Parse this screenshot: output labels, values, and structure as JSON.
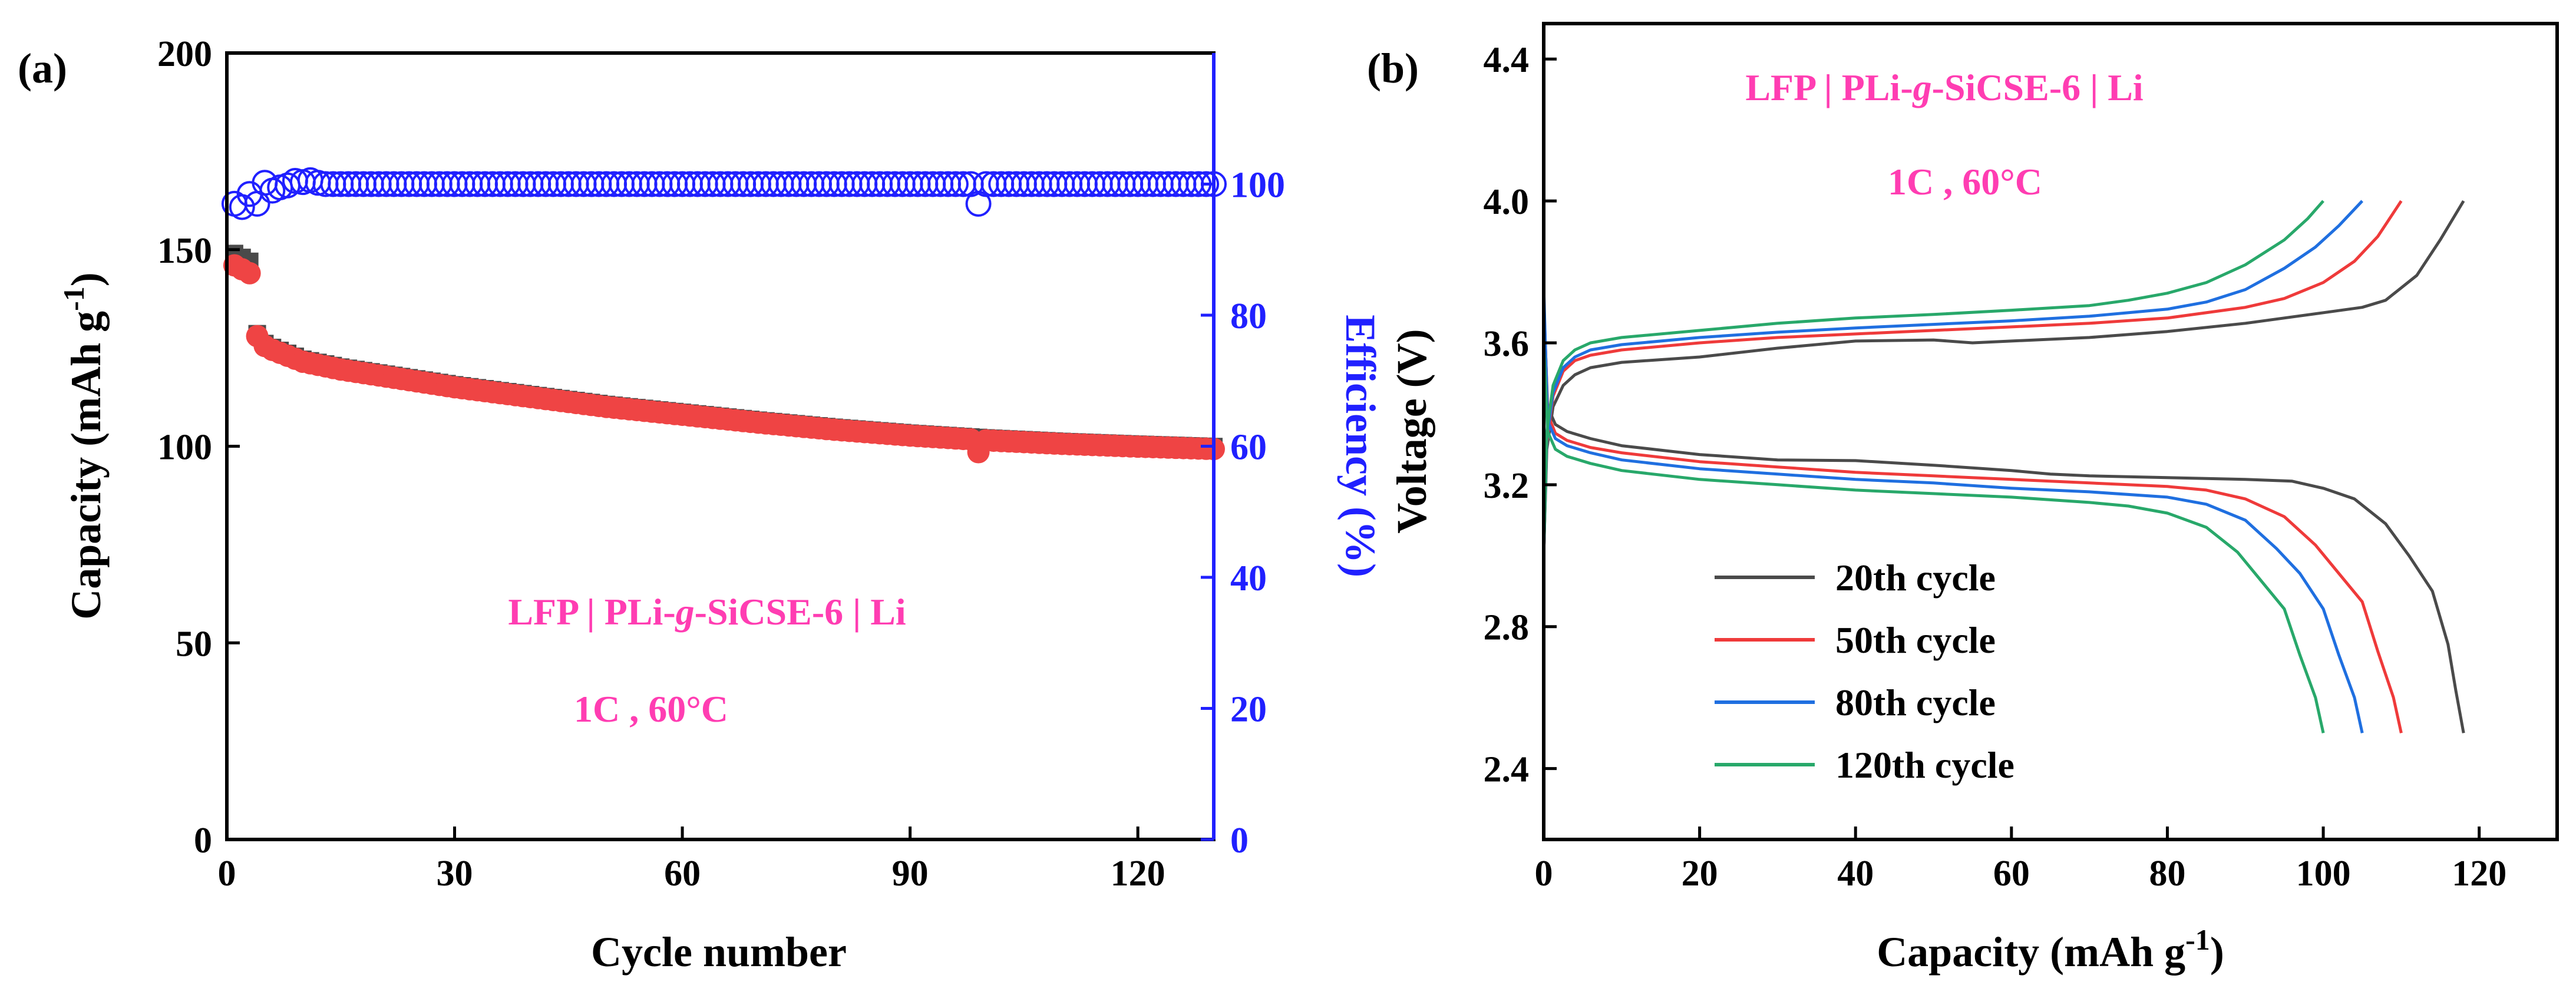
{
  "chart_data": [
    {
      "panel_label": "(a)",
      "type": "scatter",
      "xlabel": "Cycle number",
      "ylabel_main": "Capacity (mAh g",
      "ylabel_sup": "-1",
      "ylabel_close": ")",
      "y2label": "Efficiency (%)",
      "xlim": [
        0,
        130
      ],
      "ylim": [
        0,
        200
      ],
      "y2lim": [
        0,
        120
      ],
      "xticks": [
        0,
        30,
        60,
        90,
        120
      ],
      "yticks": [
        0,
        50,
        100,
        150,
        200
      ],
      "y2ticks": [
        0,
        20,
        40,
        60,
        80,
        100
      ],
      "colors": {
        "charge": "#4a4a4a",
        "discharge": "#ef4444",
        "efficiency": "#2020ff",
        "annotation": "#ff3db2",
        "axis": "#000000"
      },
      "annotation_parts": [
        "LFP | PLi-",
        "g",
        "-SiCSE-6 | Li"
      ],
      "annotation_condition": "1C , 60°C",
      "series": {
        "capacity_anchors": [
          [
            1,
            148
          ],
          [
            2,
            147
          ],
          [
            3,
            146
          ],
          [
            4,
            128
          ],
          [
            5,
            125.5
          ],
          [
            6,
            124.5
          ],
          [
            8,
            123
          ],
          [
            10,
            121.5
          ],
          [
            15,
            119.5
          ],
          [
            20,
            118
          ],
          [
            30,
            115
          ],
          [
            40,
            112.5
          ],
          [
            50,
            110
          ],
          [
            60,
            108
          ],
          [
            70,
            106
          ],
          [
            80,
            104.2
          ],
          [
            90,
            102.7
          ],
          [
            100,
            101.5
          ],
          [
            110,
            100.6
          ],
          [
            120,
            99.9
          ],
          [
            130,
            99.3
          ]
        ],
        "capacity_outlier": [
          99,
          98.5
        ],
        "efficiency_anchors": [
          [
            1,
            97
          ],
          [
            2,
            96.5
          ],
          [
            3,
            98.5
          ],
          [
            4,
            97
          ],
          [
            5,
            100.2
          ],
          [
            6,
            99
          ],
          [
            7,
            99.5
          ],
          [
            8,
            99.8
          ],
          [
            9,
            100.5
          ],
          [
            10,
            100.3
          ],
          [
            11,
            100.6
          ],
          [
            12,
            100.2
          ]
        ],
        "efficiency_steady": 100,
        "efficiency_outlier": [
          99,
          97
        ],
        "cycles": 130
      }
    },
    {
      "panel_label": "(b)",
      "type": "line",
      "xlabel_main": "Capacity (mAh g",
      "xlabel_sup": "-1",
      "xlabel_close": ")",
      "ylabel": "Voltage (V)",
      "xlim": [
        0,
        130
      ],
      "ylim": [
        2.2,
        4.5
      ],
      "xticks": [
        0,
        20,
        40,
        60,
        80,
        100,
        120
      ],
      "yticks": [
        2.4,
        2.8,
        3.2,
        3.6,
        4.0,
        4.4
      ],
      "ytick_labels": [
        "2.4",
        "2.8",
        "3.2",
        "3.6",
        "4.0",
        "4.4"
      ],
      "annotation_parts": [
        "LFP | PLi-",
        "g",
        "-SiCSE-6 | Li"
      ],
      "annotation_condition": "1C , 60°C",
      "annotation_color": "#ff3db2",
      "legend_position": "lower-left",
      "series": [
        {
          "name": "20th cycle",
          "color": "#4a4a4a",
          "charge": [
            [
              0,
              3.0
            ],
            [
              0.4,
              3.3
            ],
            [
              1.2,
              3.42
            ],
            [
              2.5,
              3.48
            ],
            [
              4,
              3.51
            ],
            [
              6,
              3.53
            ],
            [
              10,
              3.545
            ],
            [
              20,
              3.56
            ],
            [
              30,
              3.585
            ],
            [
              40,
              3.605
            ],
            [
              50,
              3.608
            ],
            [
              55,
              3.6
            ],
            [
              60,
              3.605
            ],
            [
              70,
              3.615
            ],
            [
              80,
              3.632
            ],
            [
              90,
              3.655
            ],
            [
              100,
              3.685
            ],
            [
              105,
              3.7
            ],
            [
              108,
              3.72
            ],
            [
              112,
              3.79
            ],
            [
              115,
              3.89
            ],
            [
              118,
              4.0
            ]
          ],
          "discharge": [
            [
              0,
              3.72
            ],
            [
              0.5,
              3.42
            ],
            [
              1.5,
              3.37
            ],
            [
              3,
              3.35
            ],
            [
              6,
              3.33
            ],
            [
              10,
              3.31
            ],
            [
              20,
              3.285
            ],
            [
              30,
              3.27
            ],
            [
              40,
              3.268
            ],
            [
              50,
              3.255
            ],
            [
              60,
              3.24
            ],
            [
              65,
              3.23
            ],
            [
              70,
              3.225
            ],
            [
              80,
              3.22
            ],
            [
              90,
              3.215
            ],
            [
              96,
              3.21
            ],
            [
              100,
              3.19
            ],
            [
              104,
              3.16
            ],
            [
              108,
              3.09
            ],
            [
              111,
              3.0
            ],
            [
              114,
              2.9
            ],
            [
              116,
              2.75
            ],
            [
              117,
              2.62
            ],
            [
              118,
              2.5
            ]
          ]
        },
        {
          "name": "50th cycle",
          "color": "#ef3a3a",
          "charge": [
            [
              0,
              3.0
            ],
            [
              0.4,
              3.32
            ],
            [
              1.2,
              3.45
            ],
            [
              2.5,
              3.52
            ],
            [
              4,
              3.55
            ],
            [
              6,
              3.565
            ],
            [
              10,
              3.58
            ],
            [
              20,
              3.6
            ],
            [
              30,
              3.615
            ],
            [
              40,
              3.625
            ],
            [
              50,
              3.635
            ],
            [
              60,
              3.645
            ],
            [
              70,
              3.655
            ],
            [
              80,
              3.67
            ],
            [
              90,
              3.7
            ],
            [
              95,
              3.725
            ],
            [
              100,
              3.77
            ],
            [
              104,
              3.83
            ],
            [
              107,
              3.9
            ],
            [
              110,
              4.0
            ]
          ],
          "discharge": [
            [
              0,
              3.74
            ],
            [
              0.5,
              3.4
            ],
            [
              1.5,
              3.345
            ],
            [
              3,
              3.325
            ],
            [
              6,
              3.305
            ],
            [
              10,
              3.29
            ],
            [
              20,
              3.265
            ],
            [
              30,
              3.25
            ],
            [
              40,
              3.235
            ],
            [
              50,
              3.225
            ],
            [
              60,
              3.215
            ],
            [
              70,
              3.205
            ],
            [
              80,
              3.195
            ],
            [
              85,
              3.185
            ],
            [
              90,
              3.16
            ],
            [
              95,
              3.11
            ],
            [
              99,
              3.03
            ],
            [
              102,
              2.95
            ],
            [
              105,
              2.87
            ],
            [
              107,
              2.73
            ],
            [
              109,
              2.6
            ],
            [
              110,
              2.5
            ]
          ]
        },
        {
          "name": "80th cycle",
          "color": "#1f6fe0",
          "charge": [
            [
              0,
              3.0
            ],
            [
              0.4,
              3.33
            ],
            [
              1.2,
              3.46
            ],
            [
              2.5,
              3.53
            ],
            [
              4,
              3.56
            ],
            [
              6,
              3.58
            ],
            [
              10,
              3.595
            ],
            [
              20,
              3.615
            ],
            [
              30,
              3.63
            ],
            [
              40,
              3.642
            ],
            [
              50,
              3.652
            ],
            [
              60,
              3.662
            ],
            [
              70,
              3.675
            ],
            [
              80,
              3.695
            ],
            [
              85,
              3.715
            ],
            [
              90,
              3.75
            ],
            [
              95,
              3.81
            ],
            [
              99,
              3.87
            ],
            [
              102,
              3.93
            ],
            [
              105,
              4.0
            ]
          ],
          "discharge": [
            [
              0,
              3.76
            ],
            [
              0.5,
              3.38
            ],
            [
              1.5,
              3.33
            ],
            [
              3,
              3.31
            ],
            [
              6,
              3.29
            ],
            [
              10,
              3.27
            ],
            [
              20,
              3.245
            ],
            [
              30,
              3.23
            ],
            [
              40,
              3.215
            ],
            [
              50,
              3.205
            ],
            [
              60,
              3.19
            ],
            [
              70,
              3.18
            ],
            [
              80,
              3.165
            ],
            [
              85,
              3.145
            ],
            [
              90,
              3.1
            ],
            [
              94,
              3.02
            ],
            [
              97,
              2.95
            ],
            [
              100,
              2.85
            ],
            [
              102,
              2.72
            ],
            [
              104,
              2.6
            ],
            [
              105,
              2.5
            ]
          ]
        },
        {
          "name": "120th cycle",
          "color": "#28a86a",
          "charge": [
            [
              0,
              3.0
            ],
            [
              0.4,
              3.35
            ],
            [
              1.2,
              3.48
            ],
            [
              2.5,
              3.55
            ],
            [
              4,
              3.58
            ],
            [
              6,
              3.6
            ],
            [
              10,
              3.615
            ],
            [
              20,
              3.635
            ],
            [
              30,
              3.655
            ],
            [
              40,
              3.67
            ],
            [
              50,
              3.68
            ],
            [
              60,
              3.692
            ],
            [
              70,
              3.705
            ],
            [
              75,
              3.72
            ],
            [
              80,
              3.74
            ],
            [
              85,
              3.77
            ],
            [
              90,
              3.82
            ],
            [
              95,
              3.89
            ],
            [
              98,
              3.95
            ],
            [
              100,
              4.0
            ]
          ],
          "discharge": [
            [
              0,
              3.6
            ],
            [
              0.5,
              3.35
            ],
            [
              1.5,
              3.3
            ],
            [
              3,
              3.28
            ],
            [
              6,
              3.26
            ],
            [
              10,
              3.24
            ],
            [
              20,
              3.215
            ],
            [
              30,
              3.2
            ],
            [
              40,
              3.185
            ],
            [
              50,
              3.175
            ],
            [
              60,
              3.165
            ],
            [
              70,
              3.15
            ],
            [
              75,
              3.14
            ],
            [
              80,
              3.12
            ],
            [
              85,
              3.08
            ],
            [
              89,
              3.01
            ],
            [
              92,
              2.93
            ],
            [
              95,
              2.85
            ],
            [
              97,
              2.72
            ],
            [
              99,
              2.6
            ],
            [
              100,
              2.5
            ]
          ]
        }
      ]
    }
  ]
}
